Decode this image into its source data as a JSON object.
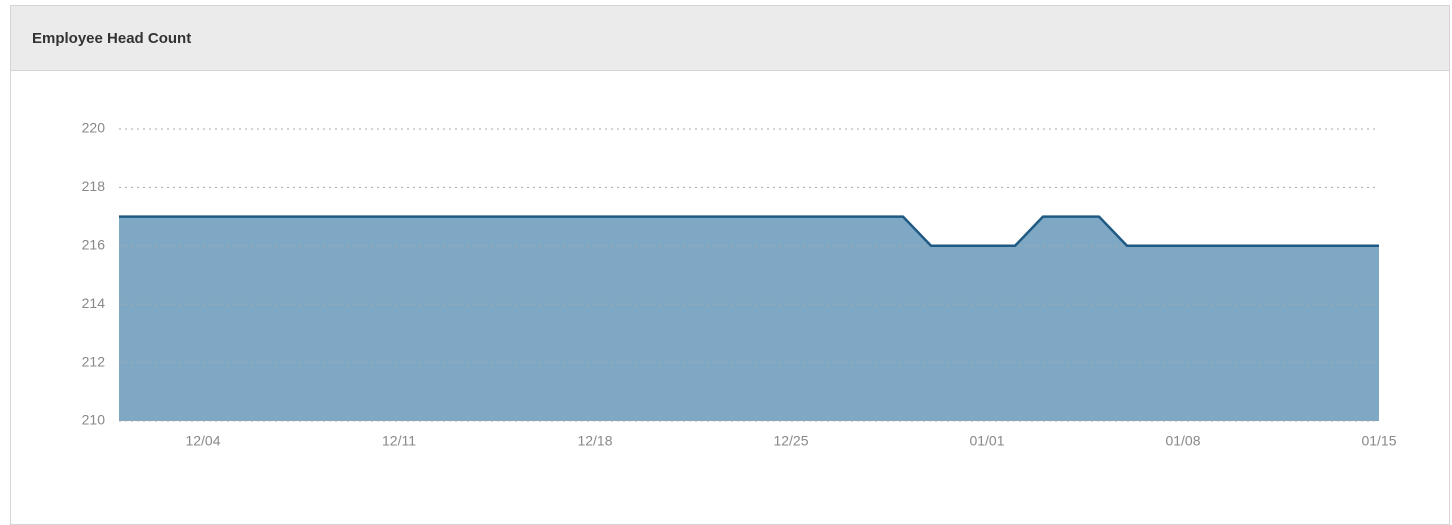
{
  "chart_data": {
    "type": "area",
    "title": "Employee Head Count",
    "categories": [
      null,
      null,
      null,
      "12/04",
      null,
      null,
      null,
      null,
      null,
      null,
      "12/11",
      null,
      null,
      null,
      null,
      null,
      null,
      "12/18",
      null,
      null,
      null,
      null,
      null,
      null,
      "12/25",
      null,
      null,
      null,
      null,
      null,
      null,
      "01/01",
      null,
      null,
      null,
      null,
      null,
      null,
      "01/08",
      null,
      null,
      null,
      null,
      null,
      null,
      "01/15"
    ],
    "series": [
      {
        "name": "Head Count",
        "color": "#1f5a85",
        "values": [
          217,
          217,
          217,
          217,
          217,
          217,
          217,
          217,
          217,
          217,
          217,
          217,
          217,
          217,
          217,
          217,
          217,
          217,
          217,
          217,
          217,
          217,
          217,
          217,
          217,
          217,
          217,
          217,
          217,
          216,
          216,
          216,
          216,
          217,
          217,
          217,
          216,
          216,
          216,
          216,
          216,
          216,
          216,
          216,
          216,
          216
        ]
      }
    ],
    "fill_color": "#7fa8c4",
    "ylim": [
      210,
      220
    ],
    "yticks": [
      210,
      212,
      214,
      216,
      218,
      220
    ],
    "grid": true
  }
}
